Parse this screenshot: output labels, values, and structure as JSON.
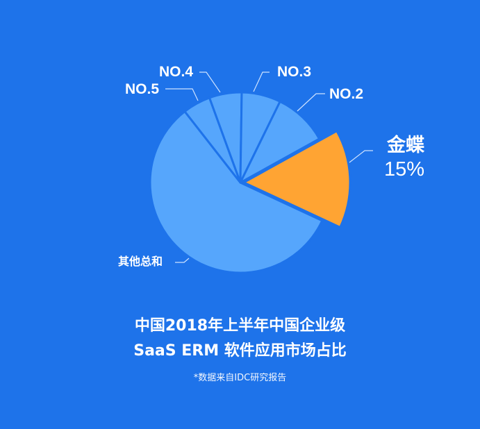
{
  "chart_data": {
    "type": "pie",
    "title": "中国2018年上半年中国企业级 SaaS ERM 软件应用市场占比",
    "title_lines": [
      "中国2018年上半年中国企业级",
      "SaaS ERM 软件应用市场占比"
    ],
    "note": "*数据来自IDC研究报告",
    "slices": [
      {
        "label": "金蝶",
        "value": 15,
        "value_label": "15%",
        "color": "#ffa433",
        "exploded": true
      },
      {
        "label": "其他总和",
        "value": 57.5,
        "color": "#56a6fc"
      },
      {
        "label": "NO.5",
        "value": 5,
        "color": "#56a6fc"
      },
      {
        "label": "NO.4",
        "value": 5.8,
        "color": "#56a6fc"
      },
      {
        "label": "NO.3",
        "value": 7,
        "color": "#56a6fc"
      },
      {
        "label": "NO.2",
        "value": 9.7,
        "color": "#56a6fc"
      }
    ],
    "background": "#1e73ea"
  }
}
